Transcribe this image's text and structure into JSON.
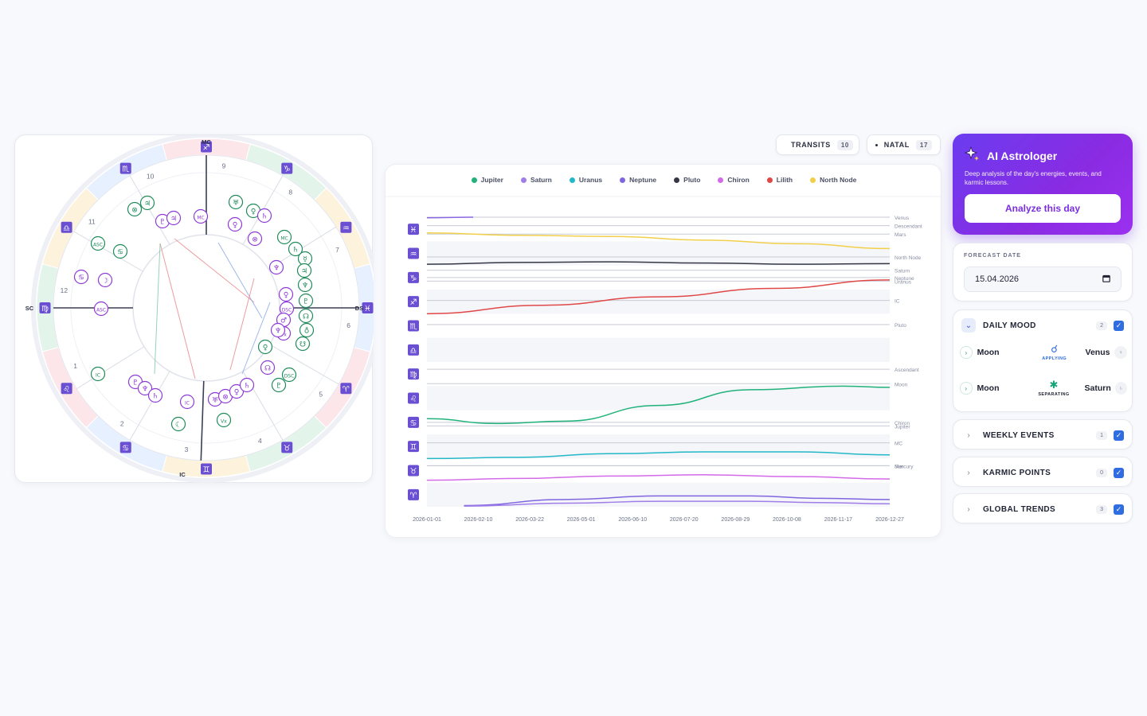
{
  "wheel": {
    "angle_labels": {
      "mc": "MC",
      "ic": "IC",
      "asc": "SC",
      "ds": "DS"
    },
    "houses": [
      "1",
      "2",
      "3",
      "4",
      "5",
      "6",
      "7",
      "8",
      "9",
      "10",
      "11",
      "12"
    ],
    "signs": [
      "♓",
      "♒",
      "♑",
      "♐",
      "♏",
      "♎",
      "♍",
      "♌",
      "♋",
      "♊",
      "♉",
      "♈"
    ],
    "sign_colors": [
      "#e6f0ff",
      "#fdf2dc",
      "#e3f5ea",
      "#fde6ea",
      "#e6f0ff",
      "#fdf2dc",
      "#e3f5ea",
      "#fde6ea",
      "#e6f0ff",
      "#fdf2dc",
      "#e3f5ea",
      "#fde6ea"
    ],
    "natal_color": "#1f8a5a",
    "transit_color": "#8e3bd6",
    "natal_planets": [
      {
        "glyph": "⊗",
        "sign": "Gemini"
      },
      {
        "glyph": "♃",
        "sign": "Gemini"
      },
      {
        "glyph": "ASC",
        "sign": "Leo"
      },
      {
        "glyph": "♋",
        "sign": "Leo"
      },
      {
        "glyph": "IC",
        "sign": "Libra"
      },
      {
        "glyph": "☾",
        "sign": "Scorpio"
      },
      {
        "glyph": "Vx",
        "sign": "Sagittarius"
      },
      {
        "glyph": "♅",
        "sign": "Aries"
      },
      {
        "glyph": "♀",
        "sign": "Aries"
      },
      {
        "glyph": "MC",
        "sign": "Aries"
      },
      {
        "glyph": "☿",
        "sign": "Taurus"
      },
      {
        "glyph": "♄",
        "sign": "Taurus"
      },
      {
        "glyph": "♃",
        "sign": "Taurus"
      },
      {
        "glyph": "♆",
        "sign": "Pisces"
      },
      {
        "glyph": "♇",
        "sign": "Pisces"
      },
      {
        "glyph": "☊",
        "sign": "Pisces"
      },
      {
        "glyph": "♁",
        "sign": "Pisces"
      },
      {
        "glyph": "☋",
        "sign": "Aquarius"
      },
      {
        "glyph": "DSC",
        "sign": "Aquarius"
      },
      {
        "glyph": "♇",
        "sign": "Aquarius"
      },
      {
        "glyph": "♀",
        "sign": "Aquarius"
      }
    ],
    "transit_planets": [
      {
        "glyph": "♇",
        "sign": "Gemini"
      },
      {
        "glyph": "♃",
        "sign": "Gemini"
      },
      {
        "glyph": "MC",
        "sign": "Cancer"
      },
      {
        "glyph": "♋",
        "sign": "Leo"
      },
      {
        "glyph": "☽",
        "sign": "Leo"
      },
      {
        "glyph": "ASC",
        "sign": "Virgo"
      },
      {
        "glyph": "♇",
        "sign": "Libra"
      },
      {
        "glyph": "♆",
        "sign": "Libra"
      },
      {
        "glyph": "♄",
        "sign": "Libra"
      },
      {
        "glyph": "IC",
        "sign": "Sagittarius"
      },
      {
        "glyph": "♅",
        "sign": "Sagittarius"
      },
      {
        "glyph": "⊗",
        "sign": "Sagittarius"
      },
      {
        "glyph": "♀",
        "sign": "Capricorn"
      },
      {
        "glyph": "♄",
        "sign": "Capricorn"
      },
      {
        "glyph": "☊",
        "sign": "Capricorn"
      },
      {
        "glyph": "♀",
        "sign": "Pisces"
      },
      {
        "glyph": "DSC",
        "sign": "Pisces"
      },
      {
        "glyph": "♂",
        "sign": "Pisces"
      },
      {
        "glyph": "Vx",
        "sign": "Pisces"
      },
      {
        "glyph": "♆",
        "sign": "Aries"
      },
      {
        "glyph": "♀",
        "sign": "Aries"
      },
      {
        "glyph": "♄",
        "sign": "Taurus"
      },
      {
        "glyph": "⊗",
        "sign": "Taurus"
      },
      {
        "glyph": "♆",
        "sign": "Pisces"
      }
    ]
  },
  "toggles": [
    {
      "label": "TRANSITS",
      "count": "10"
    },
    {
      "label": "NATAL",
      "count": "17"
    }
  ],
  "chart_data": {
    "type": "line",
    "x_labels": [
      "2026-01-01",
      "2026-02-10",
      "2026-03-22",
      "2026-05-01",
      "2026-06-10",
      "2026-07-20",
      "2026-08-29",
      "2026-10-08",
      "2026-11-17",
      "2026-12-27"
    ],
    "legend": [
      {
        "name": "Jupiter",
        "color": "#20b27a"
      },
      {
        "name": "Saturn",
        "color": "#a07de8"
      },
      {
        "name": "Uranus",
        "color": "#22b8c8"
      },
      {
        "name": "Neptune",
        "color": "#7f66e0"
      },
      {
        "name": "Pluto",
        "color": "#353744"
      },
      {
        "name": "Chiron",
        "color": "#d36ae8"
      },
      {
        "name": "Lilith",
        "color": "#e04848"
      },
      {
        "name": "North Node",
        "color": "#f2cf4a"
      }
    ],
    "y_sign_glyphs": [
      "♓",
      "♒",
      "♑",
      "♐",
      "♏",
      "♎",
      "♍",
      "♌",
      "♋",
      "♊",
      "♉",
      "♈"
    ],
    "natal_lines": [
      {
        "name": "Venus",
        "y": 0.0
      },
      {
        "name": "Descendant",
        "y": 0.7
      },
      {
        "name": "Mars",
        "y": 1.4
      },
      {
        "name": "North Node",
        "y": 3.3
      },
      {
        "name": "Saturn",
        "y": 4.4
      },
      {
        "name": "Neptune",
        "y": 5.0
      },
      {
        "name": "Uranus",
        "y": 5.3
      },
      {
        "name": "IC",
        "y": 6.9
      },
      {
        "name": "Pluto",
        "y": 8.9
      },
      {
        "name": "Ascendant",
        "y": 12.6
      },
      {
        "name": "Moon",
        "y": 13.8
      },
      {
        "name": "Chiron",
        "y": 17.0
      },
      {
        "name": "Jupiter",
        "y": 17.3
      },
      {
        "name": "MC",
        "y": 18.7
      },
      {
        "name": "Sun",
        "y": 20.6
      },
      {
        "name": "Mercury",
        "y": 20.6
      }
    ],
    "y_range": [
      0,
      24
    ],
    "series": [
      {
        "name": "Saturn",
        "color": "#8a66e0",
        "values": [
          [
            0.0,
            0.05
          ],
          [
            0.1,
            0.0
          ]
        ]
      },
      {
        "name": "North Node",
        "color": "#f2cf4a",
        "values": [
          [
            0,
            1.3
          ],
          [
            0.2,
            1.5
          ],
          [
            0.4,
            1.6
          ],
          [
            0.6,
            1.9
          ],
          [
            0.8,
            2.2
          ],
          [
            1.0,
            2.6
          ]
        ]
      },
      {
        "name": "Pluto",
        "color": "#353744",
        "values": [
          [
            0,
            3.9
          ],
          [
            0.2,
            3.75
          ],
          [
            0.4,
            3.7
          ],
          [
            0.6,
            3.8
          ],
          [
            0.8,
            3.9
          ],
          [
            1.0,
            3.85
          ]
        ]
      },
      {
        "name": "Lilith",
        "color": "#e04848",
        "values": [
          [
            0,
            8.0
          ],
          [
            0.25,
            7.3
          ],
          [
            0.5,
            6.6
          ],
          [
            0.75,
            5.9
          ],
          [
            1.0,
            5.2
          ]
        ]
      },
      {
        "name": "Jupiter",
        "color": "#20b27a",
        "values": [
          [
            0,
            16.7
          ],
          [
            0.15,
            17.1
          ],
          [
            0.3,
            16.9
          ],
          [
            0.5,
            15.6
          ],
          [
            0.7,
            14.3
          ],
          [
            0.9,
            14.0
          ],
          [
            1.0,
            14.1
          ]
        ]
      },
      {
        "name": "Uranus",
        "color": "#22b8c8",
        "values": [
          [
            0,
            20.0
          ],
          [
            0.2,
            19.9
          ],
          [
            0.4,
            19.6
          ],
          [
            0.6,
            19.45
          ],
          [
            0.8,
            19.45
          ],
          [
            1.0,
            19.7
          ]
        ]
      },
      {
        "name": "Chiron",
        "color": "#d36ae8",
        "values": [
          [
            0,
            21.8
          ],
          [
            0.2,
            21.65
          ],
          [
            0.4,
            21.45
          ],
          [
            0.6,
            21.35
          ],
          [
            0.8,
            21.5
          ],
          [
            1.0,
            21.7
          ]
        ]
      },
      {
        "name": "Neptune",
        "color": "#7f66e0",
        "values": [
          [
            0.08,
            23.9
          ],
          [
            0.3,
            23.4
          ],
          [
            0.5,
            23.1
          ],
          [
            0.7,
            23.1
          ],
          [
            0.85,
            23.3
          ],
          [
            1.0,
            23.4
          ]
        ]
      },
      {
        "name": "Saturn2",
        "color": "#a07de8",
        "values": [
          [
            0.08,
            23.95
          ],
          [
            0.3,
            23.7
          ],
          [
            0.5,
            23.55
          ],
          [
            0.7,
            23.55
          ],
          [
            0.85,
            23.65
          ],
          [
            1.0,
            23.75
          ]
        ]
      }
    ]
  },
  "ai": {
    "title": "AI Astrologer",
    "description": "Deep analysis of the day's energies, events, and karmic lessons.",
    "button": "Analyze this day"
  },
  "forecast": {
    "label": "FORECAST DATE",
    "value": "15.04.2026"
  },
  "daily_mood": {
    "title": "DAILY MOOD",
    "count": "2",
    "rows": [
      {
        "p1": "Moon",
        "aspect_glyph": "☌",
        "aspect_label": "APPLYING",
        "aspect_color": "#2f6de1",
        "p2": "Venus",
        "p2_icon": "♀"
      },
      {
        "p1": "Moon",
        "aspect_glyph": "✱",
        "aspect_label": "SEPARATING",
        "aspect_color": "#1aa37a",
        "p2": "Saturn",
        "p2_icon": "♄"
      }
    ]
  },
  "sections": [
    {
      "title": "WEEKLY EVENTS",
      "count": "1"
    },
    {
      "title": "KARMIC POINTS",
      "count": "0"
    },
    {
      "title": "GLOBAL TRENDS",
      "count": "3"
    }
  ]
}
